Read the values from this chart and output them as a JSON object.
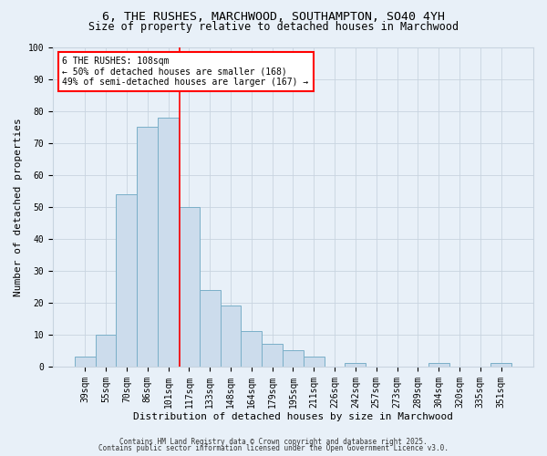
{
  "title1": "6, THE RUSHES, MARCHWOOD, SOUTHAMPTON, SO40 4YH",
  "title2": "Size of property relative to detached houses in Marchwood",
  "xlabel": "Distribution of detached houses by size in Marchwood",
  "ylabel": "Number of detached properties",
  "categories": [
    "39sqm",
    "55sqm",
    "70sqm",
    "86sqm",
    "101sqm",
    "117sqm",
    "133sqm",
    "148sqm",
    "164sqm",
    "179sqm",
    "195sqm",
    "211sqm",
    "226sqm",
    "242sqm",
    "257sqm",
    "273sqm",
    "289sqm",
    "304sqm",
    "320sqm",
    "335sqm",
    "351sqm"
  ],
  "values": [
    3,
    10,
    54,
    75,
    78,
    50,
    24,
    19,
    11,
    7,
    5,
    3,
    0,
    1,
    0,
    0,
    0,
    1,
    0,
    0,
    1
  ],
  "bar_color": "#ccdcec",
  "bar_edge_color": "#7aafc8",
  "annotation_text": "6 THE RUSHES: 108sqm\n← 50% of detached houses are smaller (168)\n49% of semi-detached houses are larger (167) →",
  "annotation_box_color": "white",
  "annotation_box_edge_color": "red",
  "vline_color": "red",
  "vline_x": 4.55,
  "ylim": [
    0,
    100
  ],
  "yticks": [
    0,
    10,
    20,
    30,
    40,
    50,
    60,
    70,
    80,
    90,
    100
  ],
  "footer1": "Contains HM Land Registry data © Crown copyright and database right 2025.",
  "footer2": "Contains public sector information licensed under the Open Government Licence v3.0.",
  "title_fontsize": 9.5,
  "subtitle_fontsize": 8.5,
  "axis_label_fontsize": 8,
  "tick_fontsize": 7,
  "annotation_fontsize": 7,
  "footer_fontsize": 5.5,
  "grid_color": "#c8d4e0",
  "bg_color": "#e8f0f8"
}
